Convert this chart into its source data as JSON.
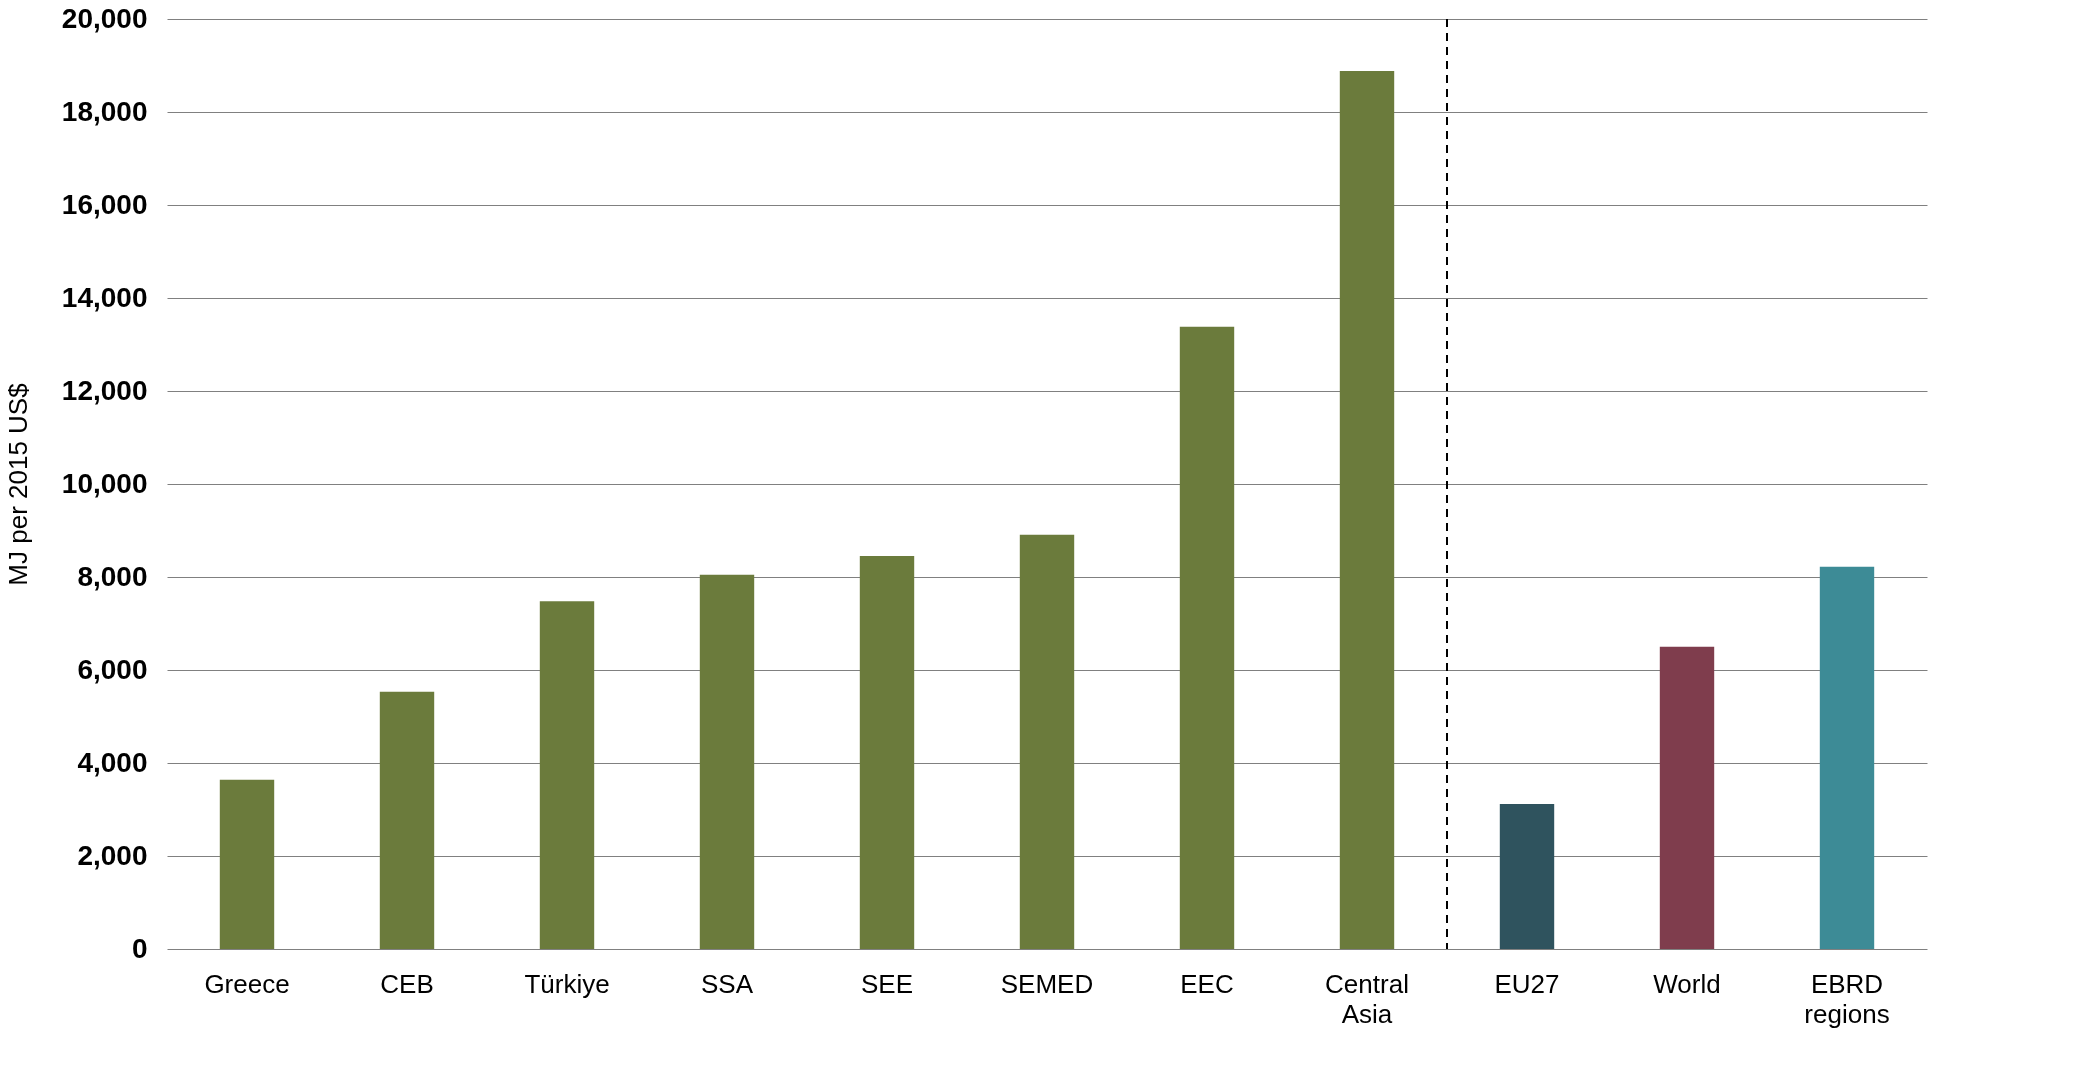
{
  "chart_data": {
    "type": "bar",
    "ylabel": "MJ per 2015 US$",
    "categories": [
      "Greece",
      "CEB",
      "Türkiye",
      "SSA",
      "SEE",
      "SEMED",
      "EEC",
      "Central Asia",
      "EU27",
      "World",
      "EBRD regions"
    ],
    "values": [
      3640,
      5530,
      7480,
      8050,
      8450,
      8910,
      13380,
      18880,
      3120,
      6500,
      8220
    ],
    "colors": [
      "#6b7b3c",
      "#6b7b3c",
      "#6b7b3c",
      "#6b7b3c",
      "#6b7b3c",
      "#6b7b3c",
      "#6b7b3c",
      "#6b7b3c",
      "#2f535e",
      "#7f3d4d",
      "#3d8b96"
    ],
    "ylim": [
      0,
      20000
    ],
    "yticks": [
      0,
      {
        "value": 2000,
        "label": "2,000"
      },
      {
        "value": 4000,
        "label": "4,000"
      },
      {
        "value": 6000,
        "label": "6,000"
      },
      {
        "value": 8000,
        "label": "8,000"
      },
      {
        "value": 10000,
        "label": "10,000"
      },
      {
        "value": 12000,
        "label": "12,000"
      },
      {
        "value": 14000,
        "label": "14,000"
      },
      {
        "value": 16000,
        "label": "16,000"
      },
      {
        "value": 18000,
        "label": "18,000"
      },
      {
        "value": 20000,
        "label": "20,000"
      }
    ],
    "grid": "y",
    "ref_lines": [
      {
        "axis": "x",
        "value": "Central Asia",
        "line_style": "dashed",
        "color": "#000000"
      }
    ]
  }
}
